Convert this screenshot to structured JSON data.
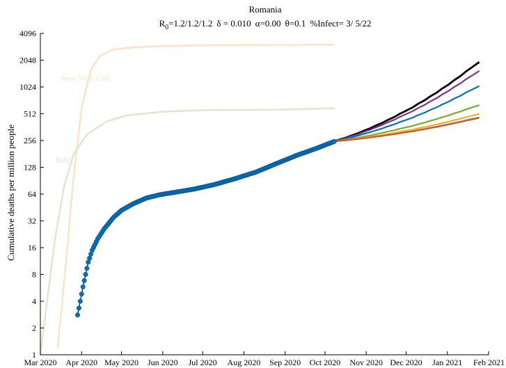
{
  "chart_data": {
    "type": "line",
    "title": "Romania",
    "subtitle": {
      "r_prefix": "R",
      "r_sub": "0",
      "r_values": "=1.2/1.2/1.2",
      "delta": "δ = 0.010",
      "alpha": "α=0.00",
      "theta": "θ=0.1",
      "infect": "%Infect= 3/ 5/22"
    },
    "ylabel": "Cumulative deaths per million people",
    "xlabel": "",
    "y_scale": "log2",
    "ylim": [
      1,
      4096
    ],
    "y_ticks": [
      "1",
      "2",
      "4",
      "8",
      "16",
      "32",
      "64",
      "128",
      "256",
      "512",
      "1024",
      "2048",
      "4096"
    ],
    "y_tick_values": [
      1,
      2,
      4,
      8,
      16,
      32,
      64,
      128,
      256,
      512,
      1024,
      2048,
      4096
    ],
    "x_ticks": [
      "Mar 2020",
      "Apr 2020",
      "May 2020",
      "Jun 2020",
      "Jul 2020",
      "Aug 2020",
      "Sep 2020",
      "Oct 2020",
      "Nov 2020",
      "Dec 2020",
      "Jan 2021",
      "Feb 2021"
    ],
    "x_tick_dates": [
      "2020-03-01",
      "2020-04-01",
      "2020-05-01",
      "2020-06-01",
      "2020-07-01",
      "2020-08-01",
      "2020-09-01",
      "2020-10-01",
      "2020-11-01",
      "2020-12-01",
      "2021-01-01",
      "2021-02-01"
    ],
    "xlim": [
      "2020-03-01",
      "2021-02-01"
    ],
    "grid": false,
    "reference_series": [
      {
        "name": "New York City",
        "color": "#fde2c8",
        "label_at": [
          "2020-03-16",
          1200
        ],
        "points": [
          [
            "2020-03-14",
            1.2
          ],
          [
            "2020-03-20",
            10
          ],
          [
            "2020-03-26",
            100
          ],
          [
            "2020-04-01",
            600
          ],
          [
            "2020-04-08",
            1600
          ],
          [
            "2020-04-15",
            2300
          ],
          [
            "2020-04-25",
            2700
          ],
          [
            "2020-05-10",
            2850
          ],
          [
            "2020-06-01",
            2950
          ],
          [
            "2020-07-01",
            3000
          ],
          [
            "2020-08-01",
            3020
          ],
          [
            "2020-09-01",
            3040
          ],
          [
            "2020-10-08",
            3060
          ]
        ]
      },
      {
        "name": "Italy",
        "color": "#dde8cc",
        "label_at": [
          "2020-03-12",
          145
        ],
        "points": [
          [
            "2020-03-01",
            1
          ],
          [
            "2020-03-06",
            4
          ],
          [
            "2020-03-12",
            20
          ],
          [
            "2020-03-19",
            80
          ],
          [
            "2020-03-26",
            180
          ],
          [
            "2020-04-05",
            300
          ],
          [
            "2020-04-20",
            420
          ],
          [
            "2020-05-05",
            490
          ],
          [
            "2020-06-01",
            540
          ],
          [
            "2020-07-01",
            560
          ],
          [
            "2020-08-01",
            565
          ],
          [
            "2020-09-01",
            570
          ],
          [
            "2020-10-08",
            590
          ]
        ]
      }
    ],
    "observed": {
      "name": "Romania",
      "color": "#0072bd",
      "points": [
        [
          "2020-03-29",
          2.8
        ],
        [
          "2020-03-31",
          4
        ],
        [
          "2020-04-02",
          5.8
        ],
        [
          "2020-04-04",
          8
        ],
        [
          "2020-04-06",
          11
        ],
        [
          "2020-04-09",
          15
        ],
        [
          "2020-04-13",
          20
        ],
        [
          "2020-04-18",
          26
        ],
        [
          "2020-04-25",
          35
        ],
        [
          "2020-05-01",
          42
        ],
        [
          "2020-05-10",
          50
        ],
        [
          "2020-05-20",
          58
        ],
        [
          "2020-05-30",
          63
        ],
        [
          "2020-06-10",
          67
        ],
        [
          "2020-06-25",
          73
        ],
        [
          "2020-07-10",
          82
        ],
        [
          "2020-07-25",
          95
        ],
        [
          "2020-08-10",
          113
        ],
        [
          "2020-08-25",
          140
        ],
        [
          "2020-09-10",
          175
        ],
        [
          "2020-09-25",
          210
        ],
        [
          "2020-10-08",
          250
        ]
      ]
    },
    "projections": [
      {
        "color": "#000000",
        "end": 1950,
        "width": 2.8
      },
      {
        "color": "#7e2f8e",
        "end": 1550,
        "width": 2.2
      },
      {
        "color": "#0072bd",
        "end": 1050,
        "width": 2.2
      },
      {
        "color": "#77ac30",
        "end": 640,
        "width": 2.2
      },
      {
        "color": "#edb120",
        "end": 510,
        "width": 2.2
      },
      {
        "color": "#4dbeee",
        "end": 470,
        "width": 1.6
      },
      {
        "color": "#d95319",
        "end": 460,
        "width": 2.2
      }
    ],
    "projection_start": [
      "2020-10-08",
      250
    ],
    "projection_end_date": "2021-01-25"
  }
}
